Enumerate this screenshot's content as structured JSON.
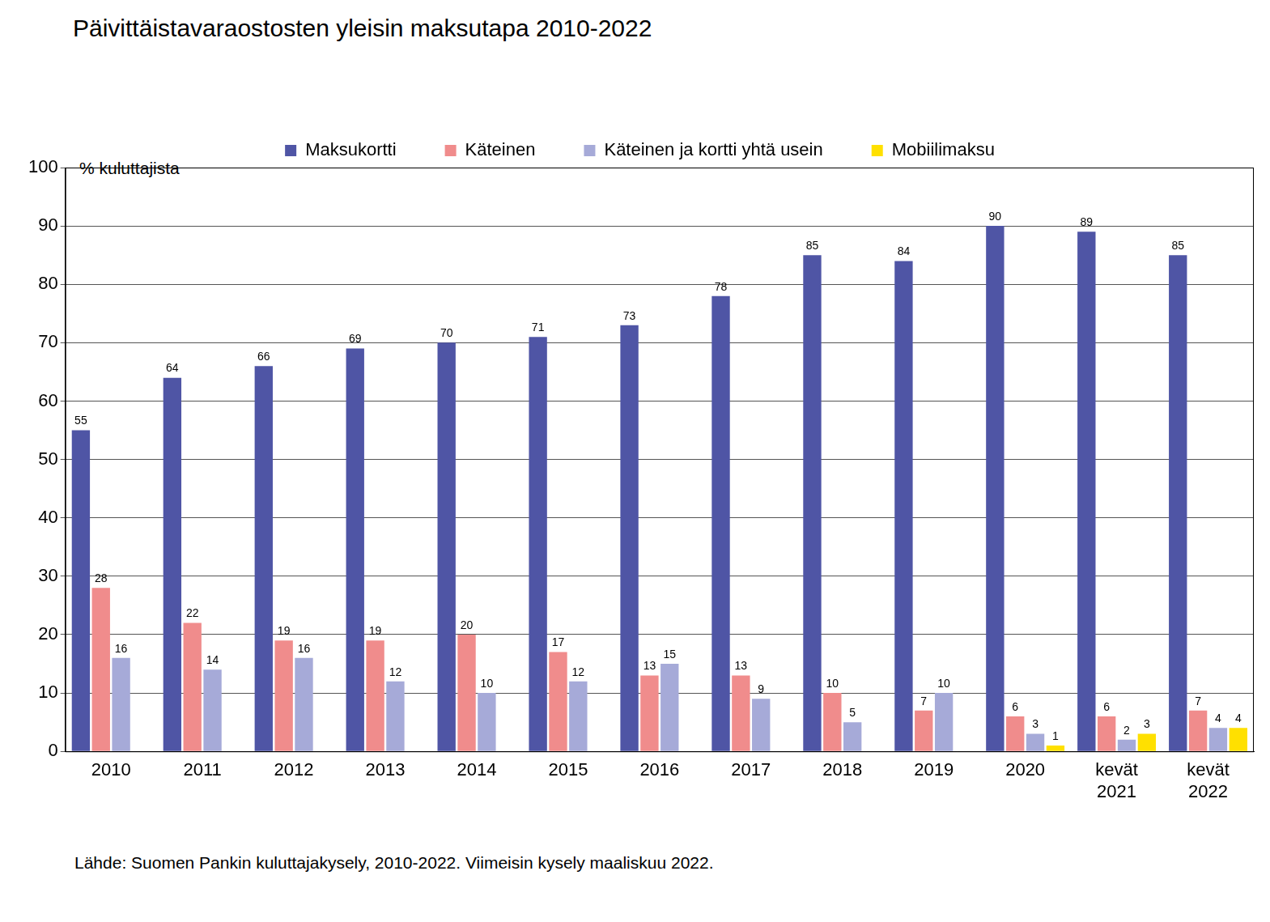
{
  "chart_data": {
    "type": "bar",
    "title": "Päivittäistavaraostosten yleisin maksutapa 2010-2022",
    "y_label": "% kuluttajista",
    "source": "Lähde: Suomen Pankin kuluttajakysely, 2010-2022. Viimeisin kysely maaliskuu 2022.",
    "categories": [
      "2010",
      "2011",
      "2012",
      "2013",
      "2014",
      "2015",
      "2016",
      "2017",
      "2018",
      "2019",
      "2020",
      "kevät 2021",
      "kevät 2022"
    ],
    "series": [
      {
        "name": "Maksukortti",
        "color": "#4f55a5",
        "values": [
          55,
          64,
          66,
          69,
          70,
          71,
          73,
          78,
          85,
          84,
          90,
          89,
          85
        ]
      },
      {
        "name": "Käteinen",
        "color": "#f08c8c",
        "values": [
          28,
          22,
          19,
          19,
          20,
          17,
          13,
          13,
          10,
          7,
          6,
          6,
          7
        ]
      },
      {
        "name": "Käteinen ja kortti yhtä usein",
        "color": "#a6aad8",
        "values": [
          16,
          14,
          16,
          12,
          10,
          12,
          15,
          9,
          5,
          10,
          3,
          2,
          4
        ]
      },
      {
        "name": "Mobiilimaksu",
        "color": "#ffe000",
        "values": [
          null,
          null,
          null,
          null,
          null,
          null,
          null,
          null,
          null,
          null,
          1,
          3,
          4
        ]
      }
    ],
    "ylim": [
      0,
      100
    ],
    "yticks": [
      0,
      10,
      20,
      30,
      40,
      50,
      60,
      70,
      80,
      90,
      100
    ],
    "grid": true,
    "legend": "top",
    "data_labels": true
  }
}
